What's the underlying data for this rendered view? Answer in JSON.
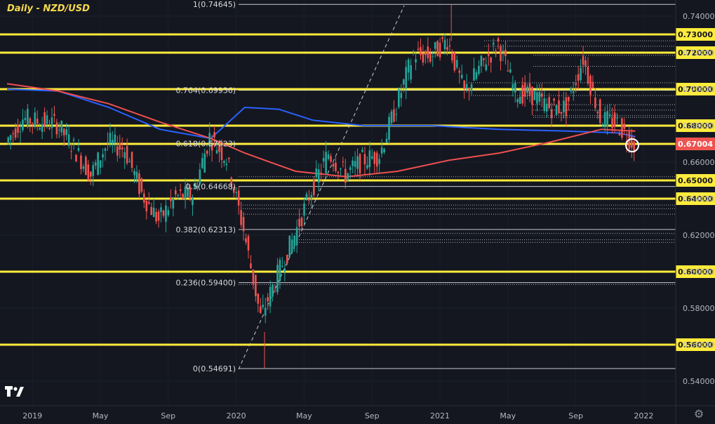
{
  "chart_title": "Daily - NZD/USD",
  "colors": {
    "background": "#141720",
    "bull": "#26a69a",
    "bear": "#ef5350",
    "horizontal_level": "#ffeb3b",
    "ma_fast": "#2962ff",
    "ma_slow": "#ef4f4f",
    "current_price_tag": "#ef5350"
  },
  "icons": {
    "logo": "tradingview-logo-icon",
    "settings": "gear-icon"
  },
  "chart_data": {
    "type": "candlestick",
    "title": "Daily - NZD/USD",
    "x_ticks": [
      "2019",
      "May",
      "Sep",
      "2020",
      "May",
      "Sep",
      "2021",
      "May",
      "Sep",
      "2022"
    ],
    "y_ticks": [
      "0.74000",
      "0.72000",
      "0.70000",
      "0.68000",
      "0.66000",
      "0.64000",
      "0.62000",
      "0.60000",
      "0.58000",
      "0.56000",
      "0.54000"
    ],
    "ylim": [
      0.5355,
      0.7505
    ],
    "current_price": "0.67004",
    "horizontal_levels": [
      "0.73000",
      "0.72000",
      "0.70000",
      "0.68000",
      "0.67000",
      "0.65000",
      "0.64000",
      "0.60000",
      "0.56000"
    ],
    "fibonacci_levels": [
      {
        "label": "1(0.74645)",
        "value": 0.74645
      },
      {
        "label": "0.764(0.69936)",
        "value": 0.69936
      },
      {
        "label": "0.618(0.67023)",
        "value": 0.67023
      },
      {
        "label": "0.5(0.64668)",
        "value": 0.64668
      },
      {
        "label": "0.382(0.62313)",
        "value": 0.62313
      },
      {
        "label": "0.236(0.59400)",
        "value": 0.594
      },
      {
        "label": "0(0.54691)",
        "value": 0.54691
      }
    ],
    "price_path": [
      {
        "date": "2018-12",
        "close": 0.671
      },
      {
        "date": "2019-01",
        "close": 0.684
      },
      {
        "date": "2019-02",
        "close": 0.682
      },
      {
        "date": "2019-03",
        "close": 0.681
      },
      {
        "date": "2019-04",
        "close": 0.668
      },
      {
        "date": "2019-05",
        "close": 0.653
      },
      {
        "date": "2019-06",
        "close": 0.671
      },
      {
        "date": "2019-07",
        "close": 0.667
      },
      {
        "date": "2019-08",
        "close": 0.643
      },
      {
        "date": "2019-09",
        "close": 0.628
      },
      {
        "date": "2019-10",
        "close": 0.641
      },
      {
        "date": "2019-11",
        "close": 0.642
      },
      {
        "date": "2019-12",
        "close": 0.674
      },
      {
        "date": "2020-01",
        "close": 0.662
      },
      {
        "date": "2020-02",
        "close": 0.623
      },
      {
        "date": "2020-03",
        "close": 0.575
      },
      {
        "date": "2020-04",
        "close": 0.598
      },
      {
        "date": "2020-05",
        "close": 0.62
      },
      {
        "date": "2020-06",
        "close": 0.645
      },
      {
        "date": "2020-07",
        "close": 0.665
      },
      {
        "date": "2020-08",
        "close": 0.653
      },
      {
        "date": "2020-09",
        "close": 0.661
      },
      {
        "date": "2020-10",
        "close": 0.664
      },
      {
        "date": "2020-11",
        "close": 0.691
      },
      {
        "date": "2020-12",
        "close": 0.719
      },
      {
        "date": "2021-01",
        "close": 0.718
      },
      {
        "date": "2021-02",
        "close": 0.727
      },
      {
        "date": "2021-03",
        "close": 0.698
      },
      {
        "date": "2021-04",
        "close": 0.713
      },
      {
        "date": "2021-05",
        "close": 0.725
      },
      {
        "date": "2021-06",
        "close": 0.698
      },
      {
        "date": "2021-07",
        "close": 0.697
      },
      {
        "date": "2021-08",
        "close": 0.69
      },
      {
        "date": "2021-09",
        "close": 0.69
      },
      {
        "date": "2021-10",
        "close": 0.717
      },
      {
        "date": "2021-11",
        "close": 0.684
      },
      {
        "date": "2021-12",
        "close": 0.681
      },
      {
        "date": "2022-01",
        "close": 0.67
      }
    ],
    "ma_fast": [
      {
        "date": "2018-12",
        "value": 0.7
      },
      {
        "date": "2019-03",
        "value": 0.699
      },
      {
        "date": "2019-06",
        "value": 0.69
      },
      {
        "date": "2019-09",
        "value": 0.678
      },
      {
        "date": "2019-12",
        "value": 0.673
      },
      {
        "date": "2020-02",
        "value": 0.69
      },
      {
        "date": "2020-04",
        "value": 0.689
      },
      {
        "date": "2020-06",
        "value": 0.683
      },
      {
        "date": "2020-09",
        "value": 0.68
      },
      {
        "date": "2021-01",
        "value": 0.68
      },
      {
        "date": "2021-05",
        "value": 0.678
      },
      {
        "date": "2021-09",
        "value": 0.677
      },
      {
        "date": "2021-12",
        "value": 0.676
      },
      {
        "date": "2022-01",
        "value": 0.674
      }
    ],
    "ma_slow": [
      {
        "date": "2018-12",
        "value": 0.703
      },
      {
        "date": "2019-03",
        "value": 0.699
      },
      {
        "date": "2019-06",
        "value": 0.692
      },
      {
        "date": "2019-09",
        "value": 0.682
      },
      {
        "date": "2019-12",
        "value": 0.673
      },
      {
        "date": "2020-02",
        "value": 0.665
      },
      {
        "date": "2020-05",
        "value": 0.655
      },
      {
        "date": "2020-08",
        "value": 0.652
      },
      {
        "date": "2020-11",
        "value": 0.655
      },
      {
        "date": "2021-02",
        "value": 0.661
      },
      {
        "date": "2021-05",
        "value": 0.665
      },
      {
        "date": "2021-08",
        "value": 0.671
      },
      {
        "date": "2021-11",
        "value": 0.678
      },
      {
        "date": "2022-01",
        "value": 0.677
      }
    ]
  }
}
